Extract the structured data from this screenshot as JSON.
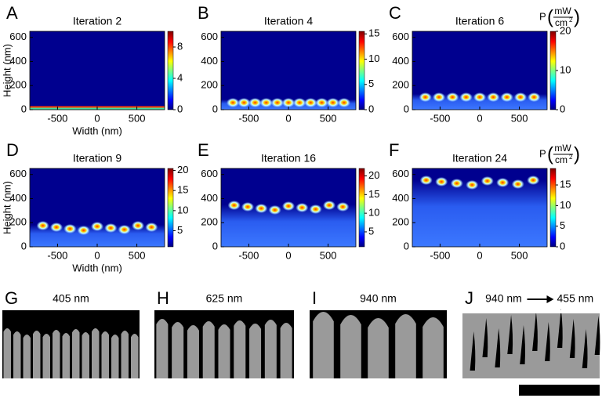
{
  "chart_data": [
    {
      "type": "heatmap",
      "letter": "A",
      "title": "Iteration 2",
      "xlabel": "Width (nm)",
      "ylabel": "Height (nm)",
      "xlim": [
        -850,
        850
      ],
      "ylim": [
        0,
        650
      ],
      "xticks": [
        -500,
        0,
        500
      ],
      "yticks": [
        0,
        200,
        400,
        600
      ],
      "clim": [
        0,
        10
      ],
      "cticks": [
        0,
        4,
        8
      ]
    },
    {
      "type": "heatmap",
      "letter": "B",
      "title": "Iteration 4",
      "xlim": [
        -850,
        850
      ],
      "ylim": [
        0,
        650
      ],
      "xticks": [
        -500,
        0,
        500
      ],
      "yticks": [
        0,
        200,
        400,
        600
      ],
      "clim": [
        0,
        15.5
      ],
      "cticks": [
        0,
        5,
        10,
        15
      ]
    },
    {
      "type": "heatmap",
      "letter": "C",
      "title": "Iteration 6",
      "xlim": [
        -850,
        850
      ],
      "ylim": [
        0,
        650
      ],
      "xticks": [
        -500,
        0,
        500
      ],
      "yticks": [
        0,
        200,
        400,
        600
      ],
      "clim": [
        0,
        20
      ],
      "cticks": [
        0,
        10,
        20
      ],
      "cbar_label": {
        "symbol": "P",
        "numerator": "mW",
        "denominator": "cm",
        "exponent": "2"
      }
    },
    {
      "type": "heatmap",
      "letter": "D",
      "title": "Iteration 9",
      "xlabel": "Width (nm)",
      "ylabel": "Height (nm)",
      "xlim": [
        -850,
        850
      ],
      "ylim": [
        0,
        650
      ],
      "xticks": [
        -500,
        0,
        500
      ],
      "yticks": [
        0,
        200,
        400,
        600
      ],
      "clim": [
        1,
        20.5
      ],
      "cticks": [
        5,
        10,
        15,
        20
      ]
    },
    {
      "type": "heatmap",
      "letter": "E",
      "title": "Iteration 16",
      "xlim": [
        -850,
        850
      ],
      "ylim": [
        0,
        650
      ],
      "xticks": [
        -500,
        0,
        500
      ],
      "yticks": [
        0,
        200,
        400,
        600
      ],
      "clim": [
        1,
        22
      ],
      "cticks": [
        5,
        10,
        15,
        20
      ]
    },
    {
      "type": "heatmap",
      "letter": "F",
      "title": "Iteration 24",
      "xlim": [
        -850,
        850
      ],
      "ylim": [
        0,
        650
      ],
      "xticks": [
        -500,
        0,
        500
      ],
      "yticks": [
        0,
        200,
        400,
        600
      ],
      "clim": [
        0,
        19
      ],
      "cticks": [
        0,
        5,
        10,
        15
      ],
      "cbar_label": {
        "symbol": "P",
        "numerator": "mW",
        "denominator": "cm",
        "exponent": "2"
      }
    }
  ],
  "images": [
    {
      "letter": "G",
      "title": "405 nm"
    },
    {
      "letter": "H",
      "title": "625 nm"
    },
    {
      "letter": "I",
      "title": "940 nm"
    },
    {
      "letter": "J",
      "title": "940 nm",
      "title_end": "455 nm"
    }
  ]
}
